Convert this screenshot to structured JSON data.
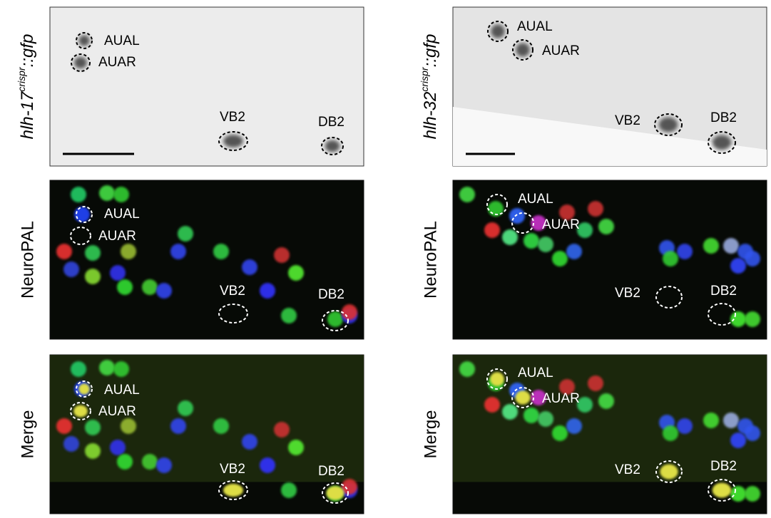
{
  "columns": [
    {
      "gene": {
        "name": "hlh-17",
        "superscript": "crispr",
        "suffix": "::gfp"
      },
      "rows": [
        {
          "labels": [
            "AUAL",
            "AUAR",
            "VB2",
            "DB2"
          ]
        },
        {
          "label": "NeuroPAL",
          "labels": [
            "AUAL",
            "AUAR",
            "VB2",
            "DB2"
          ]
        },
        {
          "label": "Merge",
          "labels": [
            "AUAL",
            "AUAR",
            "VB2",
            "DB2"
          ]
        }
      ]
    },
    {
      "gene": {
        "name": "hlh-32",
        "superscript": "crispr",
        "suffix": "::gfp"
      },
      "rows": [
        {
          "labels": [
            "AUAL",
            "AUAR",
            "VB2",
            "DB2"
          ]
        },
        {
          "label": "NeuroPAL",
          "labels": [
            "AUAL",
            "AUAR",
            "VB2",
            "DB2"
          ]
        },
        {
          "label": "Merge",
          "labels": [
            "AUAL",
            "AUAR",
            "VB2",
            "DB2"
          ]
        }
      ]
    }
  ]
}
